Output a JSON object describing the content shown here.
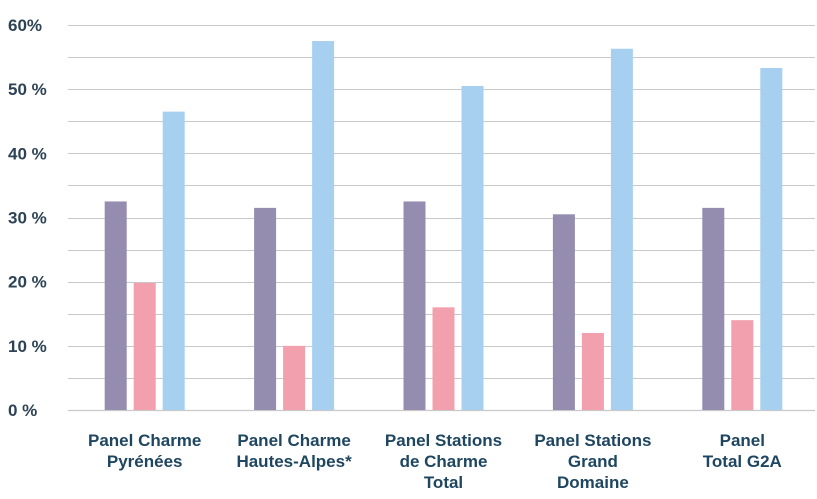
{
  "chart_data": {
    "type": "bar",
    "title": "",
    "xlabel": "",
    "ylabel": "",
    "ylim": [
      0,
      60
    ],
    "y_ticks": [
      {
        "value": 0,
        "label": "0 %"
      },
      {
        "value": 10,
        "label": "10 %"
      },
      {
        "value": 20,
        "label": "20 %"
      },
      {
        "value": 30,
        "label": "30 %"
      },
      {
        "value": 40,
        "label": "40 %"
      },
      {
        "value": 50,
        "label": "50 %"
      },
      {
        "value": 60,
        "label": "60%"
      }
    ],
    "minor_gridlines": true,
    "grid": true,
    "legend": "none",
    "categories": [
      [
        "Panel Charme",
        "Pyrénées"
      ],
      [
        "Panel Charme",
        "Hautes-Alpes*"
      ],
      [
        "Panel Stations",
        "de Charme",
        "Total"
      ],
      [
        "Panel Stations",
        "Grand",
        "Domaine"
      ],
      [
        "Panel",
        "Total G2A"
      ]
    ],
    "series": [
      {
        "color": "#958db0",
        "values": [
          32.5,
          31.5,
          32.5,
          30.5,
          31.5
        ]
      },
      {
        "color": "#f2a0ad",
        "values": [
          19.8,
          10.0,
          16.0,
          12.0,
          14.0
        ]
      },
      {
        "color": "#a7d0f0",
        "values": [
          46.5,
          57.5,
          50.5,
          56.3,
          53.3
        ]
      }
    ]
  }
}
